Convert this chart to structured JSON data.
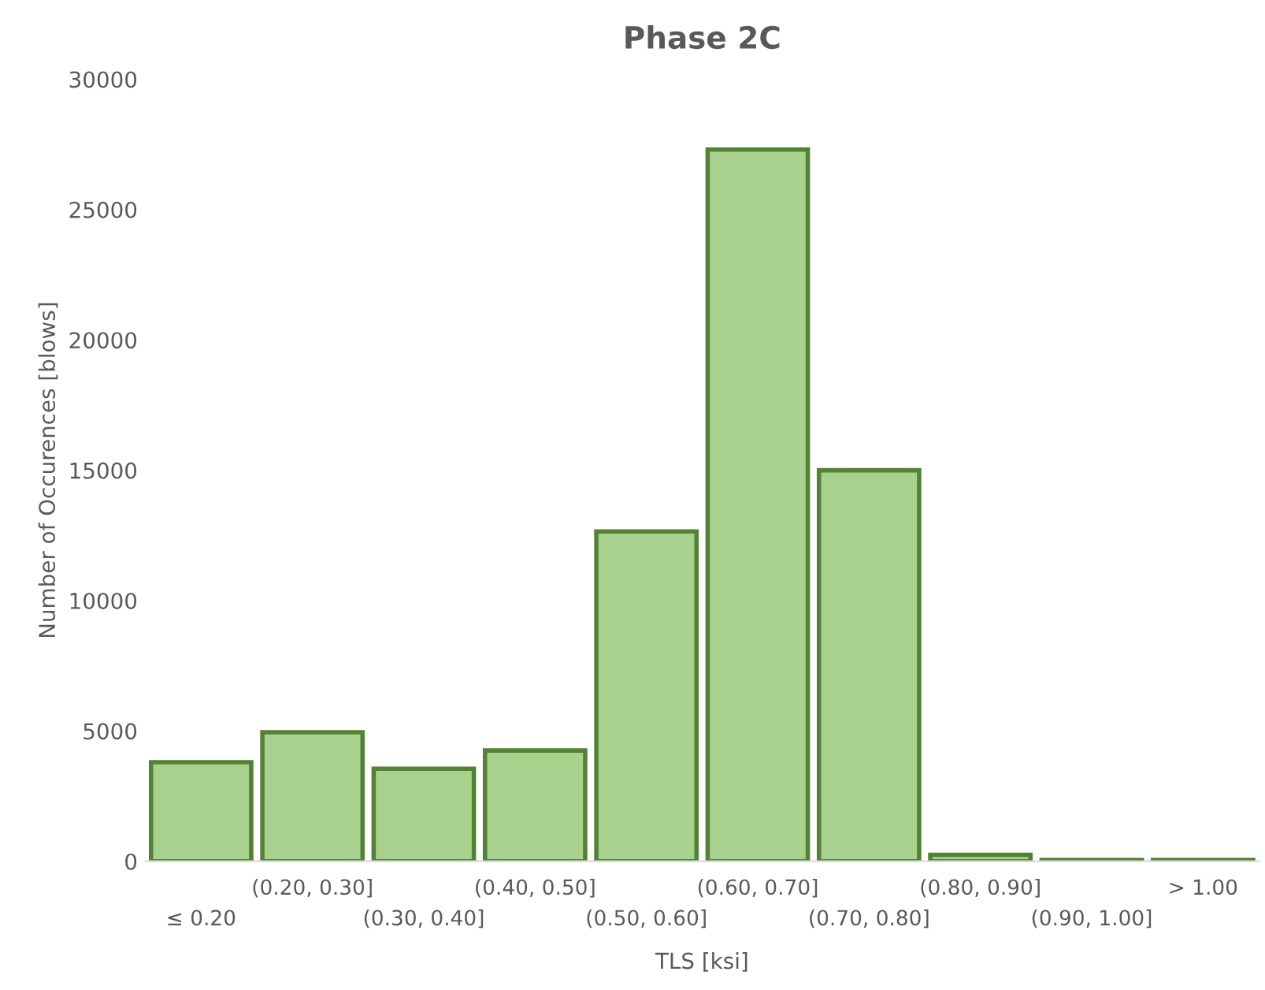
{
  "chart_data": {
    "type": "bar",
    "title": "Phase 2C",
    "xlabel": "TLS [ksi]",
    "ylabel": "Number of Occurences [blows]",
    "categories": [
      "≤ 0.20",
      "(0.20, 0.30]",
      "(0.30, 0.40]",
      "(0.40, 0.50]",
      "(0.50, 0.60]",
      "(0.60, 0.70]",
      "(0.70, 0.80]",
      "(0.80, 0.90]",
      "(0.90, 1.00]",
      "> 1.00"
    ],
    "values": [
      3800,
      4950,
      3550,
      4250,
      12650,
      27300,
      15000,
      250,
      50,
      50
    ],
    "color": "#a9d18e",
    "ylim": [
      0,
      30000
    ],
    "yticks": [
      0,
      5000,
      10000,
      15000,
      20000,
      25000,
      30000
    ],
    "grid": false,
    "legend": false
  }
}
